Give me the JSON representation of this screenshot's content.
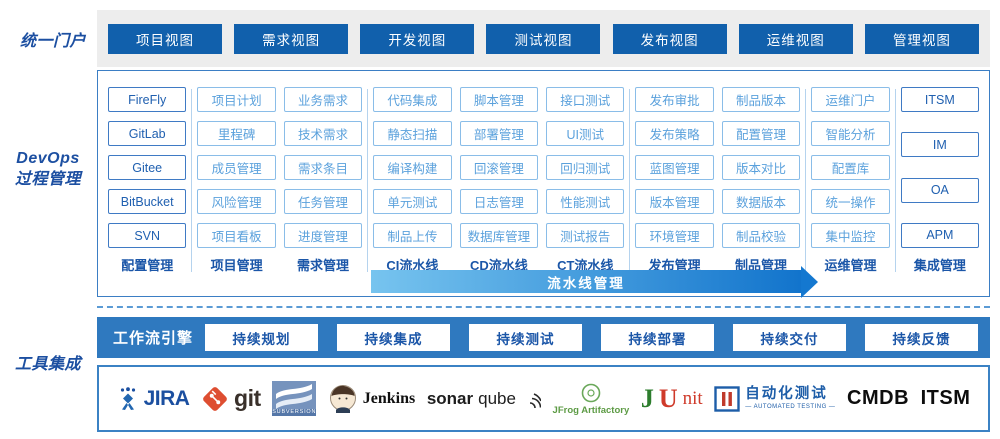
{
  "labels": {
    "portal": "统一门户",
    "devops": [
      "DevOps",
      "过程管理"
    ],
    "tools": "工具集成"
  },
  "portal_views": [
    "项目视图",
    "需求视图",
    "开发视图",
    "测试视图",
    "发布视图",
    "运维视图",
    "管理视图"
  ],
  "process": {
    "arrow_label": "流水线管理",
    "columns": [
      {
        "footer": "配置管理",
        "variant": "dark",
        "sep_after": true,
        "items": [
          "FireFly",
          "GitLab",
          "Gitee",
          "BitBucket",
          "SVN"
        ]
      },
      {
        "footer": "项目管理",
        "variant": "light",
        "sep_after": false,
        "items": [
          "项目计划",
          "里程碑",
          "成员管理",
          "风险管理",
          "项目看板"
        ]
      },
      {
        "footer": "需求管理",
        "variant": "light",
        "sep_after": true,
        "items": [
          "业务需求",
          "技术需求",
          "需求条目",
          "任务管理",
          "进度管理"
        ]
      },
      {
        "footer": "CI流水线",
        "variant": "light",
        "sep_after": false,
        "items": [
          "代码集成",
          "静态扫描",
          "编译构建",
          "单元测试",
          "制品上传"
        ]
      },
      {
        "footer": "CD流水线",
        "variant": "light",
        "sep_after": false,
        "items": [
          "脚本管理",
          "部署管理",
          "回滚管理",
          "日志管理",
          "数据库管理"
        ]
      },
      {
        "footer": "CT流水线",
        "variant": "light",
        "sep_after": true,
        "items": [
          "接口测试",
          "UI测试",
          "回归测试",
          "性能测试",
          "测试报告"
        ]
      },
      {
        "footer": "发布管理",
        "variant": "light",
        "sep_after": false,
        "items": [
          "发布审批",
          "发布策略",
          "蓝图管理",
          "版本管理",
          "环境管理"
        ]
      },
      {
        "footer": "制品管理",
        "variant": "light",
        "sep_after": true,
        "items": [
          "制品版本",
          "配置管理",
          "版本对比",
          "数据版本",
          "制品校验"
        ]
      },
      {
        "footer": "运维管理",
        "variant": "light",
        "sep_after": true,
        "items": [
          "运维门户",
          "智能分析",
          "配置库",
          "统一操作",
          "集中监控"
        ]
      },
      {
        "footer": "集成管理",
        "variant": "dark",
        "sep_after": false,
        "items": [
          "ITSM",
          "IM",
          "OA",
          "APM"
        ]
      }
    ]
  },
  "workflow": {
    "engine": "工作流引擎",
    "stages": [
      "持续规划",
      "持续集成",
      "持续测试",
      "持续部署",
      "持续交付",
      "持续反馈"
    ]
  },
  "integrations": [
    {
      "id": "jira",
      "label": "JIRA"
    },
    {
      "id": "git",
      "label": "git"
    },
    {
      "id": "subversion",
      "label": "SUBVERSION"
    },
    {
      "id": "jenkins",
      "label": "Jenkins"
    },
    {
      "id": "sonarqube",
      "bold": "sonar",
      "rest": "qube"
    },
    {
      "id": "jfrog",
      "label": "JFrog Artifactory"
    },
    {
      "id": "junit",
      "parts": [
        "J",
        "U",
        "nit"
      ]
    },
    {
      "id": "automated-testing",
      "cn": "自动化测试",
      "en": "— AUTOMATED TESTING —"
    },
    {
      "id": "cmdb",
      "label": "CMDB"
    },
    {
      "id": "itsm",
      "label": "ITSM"
    }
  ],
  "colors": {
    "portal_button": "#1160ac",
    "panel_border": "#3b7ec4",
    "chip_light_border": "#8abde8",
    "chip_light_text": "#5ba1dc",
    "chip_dark_border": "#3f7ac4",
    "chip_dark_text": "#2060b0",
    "footer_text": "#1b56a8",
    "arrow_gradient_start": "#77c4ef",
    "arrow_gradient_end": "#1274cc",
    "workflow_bar": "#2f79bf",
    "side_label": "#1c4fa1",
    "strip_background": "#ededed"
  }
}
